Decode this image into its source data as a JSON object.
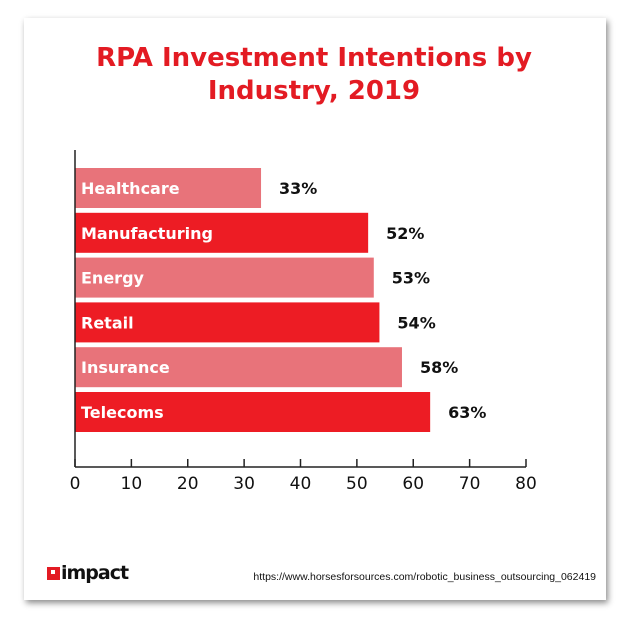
{
  "chart_data": {
    "type": "bar",
    "orientation": "horizontal",
    "title": "RPA Investment Intentions by Industry, 2019",
    "title_lines": [
      "RPA Investment Intentions by",
      "Industry, 2019"
    ],
    "categories": [
      "Healthcare",
      "Manufacturing",
      "Energy",
      "Retail",
      "Insurance",
      "Telecoms"
    ],
    "values": [
      33,
      52,
      53,
      54,
      58,
      63
    ],
    "data_labels": [
      "33%",
      "52%",
      "53%",
      "54%",
      "58%",
      "63%"
    ],
    "xlim": [
      0,
      80
    ],
    "xticks": [
      0,
      10,
      20,
      30,
      40,
      50,
      60,
      70,
      80
    ],
    "xlabel": "",
    "ylabel": "",
    "grid": false,
    "colors": {
      "light": "#e8737a",
      "dark": "#ed1c24",
      "title": "#e31b23"
    }
  },
  "footer": {
    "logo": "impact",
    "source": "https://www.horsesforsources.com/robotic_business_outsourcing_062419"
  }
}
